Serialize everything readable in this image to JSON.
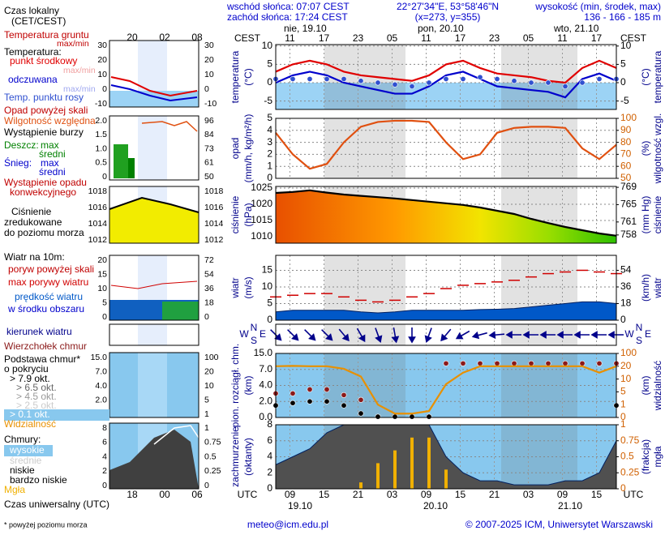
{
  "header": {
    "sunrise": "wschód słońca: 07:07 CEST",
    "sunset": "zachód słońca: 17:24 CEST",
    "coords": "22°27'34\"E, 53°58'46\"N",
    "grid_point": "(x=273, y=355)",
    "elevation_title": "wysokość (min, środek, max)",
    "elevation": "136 - 166 - 185 m"
  },
  "axes": {
    "local_label": "CEST",
    "utc_label": "UTC",
    "days": [
      "nie, 19.10",
      "pon, 20.10",
      "wto, 21.10"
    ],
    "utc_dates": [
      "19.10",
      "20.10",
      "21.10"
    ]
  },
  "legend": {
    "texts": [
      "Czas lokalny",
      "(CET/CEST)",
      "Temperatura gruntu",
      "max/min",
      "Temperatura:",
      "max/min",
      "max/min",
      "Opad powyżej skali",
      "Wystąpienie burzy",
      "Deszcz:",
      "max",
      "średni",
      "Śnieg:",
      "max",
      "średni",
      "Wystąpienie opadu",
      "konwekcyjnego",
      "Ciśnienie",
      "zredukowane",
      "do poziomu morza",
      "Wiatr na 10m:",
      "poryw powyżej skali",
      "w środku obszaru",
      "kierunek wiatru",
      "Podstawa chmur*",
      "o pokryciu",
      "> 6.5 okt.",
      "> 4.5 okt.",
      "> 2.5 okt.",
      "> 0.1 okt.",
      "Chmury:",
      "wysokie",
      "średnie",
      "bardzo niskie",
      "Czas uniwersalny (UTC)"
    ],
    "mini_times_top": [
      "20",
      "02",
      "08"
    ],
    "mini_times_bottom": [
      "18",
      "00",
      "06"
    ],
    "mini_ticks": [
      {
        "left": [
          30,
          20,
          10,
          0,
          -10
        ],
        "right": [
          30,
          20,
          10,
          0,
          -10
        ]
      },
      {
        "left": [
          "2.0",
          "1.5",
          "1.0",
          "0.5",
          0
        ],
        "right": [
          96,
          84,
          73,
          61,
          50
        ]
      },
      {
        "left": [
          1018,
          1016,
          1014,
          1012
        ],
        "right": [
          1018,
          1016,
          1014,
          1012
        ]
      },
      {
        "left": [
          20,
          15,
          10,
          5,
          0
        ],
        "right": [
          72,
          54,
          36,
          18,
          0
        ]
      },
      {
        "left": [
          "15.0",
          "7.0",
          "4.0",
          "2.0",
          "0.0"
        ],
        "right": [
          100,
          20,
          10,
          5,
          1
        ]
      },
      {
        "left": [
          8,
          6,
          4,
          2,
          0
        ],
        "right": [
          1,
          0.75,
          0.5,
          0.25,
          0
        ]
      }
    ]
  },
  "footer": {
    "note": "* powyżej poziomu morza",
    "email": "meteo@icm.edu.pl",
    "copyright": "© 2007-2025 ICM, Uniwersytet Warszawski"
  },
  "chart_data": [
    {
      "type": "line",
      "ylabel": [
        "temperatura",
        "(°C)"
      ],
      "y2label": [
        "(°C)",
        "temperatura"
      ],
      "x": [
        6.5,
        9.5,
        12.5,
        15.5,
        18.5,
        21.5,
        24.5,
        27.5,
        30.5,
        33.5,
        36.5,
        39.5,
        42.5,
        45.5,
        48.5,
        51.5,
        54.5,
        57.5,
        60.5,
        63.5,
        66.5
      ],
      "xlim": [
        6.5,
        66.5
      ],
      "xticks": [
        {
          "value": 9,
          "label": "11"
        },
        {
          "value": 15,
          "label": "17"
        },
        {
          "value": 21,
          "label": "23"
        },
        {
          "value": 27,
          "label": "05"
        },
        {
          "value": 33,
          "label": "11"
        },
        {
          "value": 39,
          "label": "17"
        },
        {
          "value": 45,
          "label": "23"
        },
        {
          "value": 51,
          "label": "05"
        },
        {
          "value": 57,
          "label": "11"
        },
        {
          "value": 63,
          "label": "17"
        }
      ],
      "ylim": [
        -7.3,
        10.4
      ],
      "yticks": [
        -5,
        0,
        5,
        10
      ],
      "y2lim": [
        -7.3,
        10.4
      ],
      "y2ticks": [
        -5,
        0,
        5,
        10
      ],
      "grid": true,
      "series": [
        {
          "name": "punkt środkowy",
          "color": "#e00000",
          "kind": "line",
          "values": [
            3,
            5,
            6,
            5,
            3,
            2,
            1.5,
            1,
            0.5,
            2,
            5,
            6,
            4,
            2.5,
            2,
            1.5,
            0.5,
            0,
            4,
            6,
            4
          ]
        },
        {
          "name": "odczuwana",
          "color": "#0000cc",
          "kind": "line",
          "values": [
            0,
            2,
            3,
            2,
            0,
            -1,
            -2,
            -3,
            -3,
            -1,
            2,
            3,
            1,
            -1,
            -1.5,
            -2,
            -2.5,
            -4,
            1,
            2.5,
            0.5
          ]
        },
        {
          "name": "Temp. punktu rosy",
          "color": "#3050d0",
          "kind": "dots",
          "values": [
            1,
            1,
            1,
            1,
            1,
            0.5,
            0,
            -0.5,
            -1,
            0,
            1,
            1,
            1.5,
            1,
            0.5,
            0,
            0,
            -1,
            0,
            1,
            1
          ]
        }
      ]
    },
    {
      "type": "line",
      "ylabel": [
        "opad",
        "(mm/h, kg/m²/h)"
      ],
      "y2label": [
        "(%)",
        "wilgotność wzgl."
      ],
      "x": [
        6.5,
        9.5,
        12.5,
        15.5,
        18.5,
        21.5,
        24.5,
        27.5,
        30.5,
        33.5,
        36.5,
        39.5,
        42.5,
        45.5,
        48.5,
        51.5,
        54.5,
        57.5,
        60.5,
        63.5,
        66.5
      ],
      "xlim": [
        6.5,
        66.5
      ],
      "ylim": [
        0,
        5
      ],
      "yticks": [
        0,
        1,
        2,
        3,
        4,
        5
      ],
      "y2lim": [
        50,
        100
      ],
      "y2ticks": [
        50,
        60,
        70,
        80,
        90,
        100
      ],
      "grid": true,
      "series": [
        {
          "name": "Wilgotność względna",
          "color": "#e05010",
          "kind": "line",
          "axis": "y2",
          "values": [
            88,
            70,
            58,
            62,
            80,
            93,
            97,
            98,
            98,
            97,
            80,
            66,
            70,
            88,
            92,
            93,
            93,
            92,
            75,
            66,
            78
          ]
        }
      ]
    },
    {
      "type": "area",
      "ylabel": [
        "ciśnienie",
        "(hPa)"
      ],
      "y2label": [
        "(mm Hg)",
        "ciśnienie"
      ],
      "color": "#000000",
      "x": [
        6.5,
        9.5,
        12.5,
        15.5,
        18.5,
        21.5,
        24.5,
        27.5,
        30.5,
        33.5,
        36.5,
        39.5,
        42.5,
        45.5,
        48.5,
        51.5,
        54.5,
        57.5,
        60.5,
        63.5,
        66.5
      ],
      "xlim": [
        6.5,
        66.5
      ],
      "ylim": [
        1008,
        1025.5
      ],
      "yticks": [
        1010,
        1015,
        1020,
        1025
      ],
      "y2lim": [
        756.1,
        769.2
      ],
      "y2ticks": [
        758,
        761,
        765,
        769
      ],
      "grid": true,
      "values": [
        1023.5,
        1023.8,
        1024.3,
        1023.6,
        1023,
        1022.6,
        1022.2,
        1021.8,
        1021.3,
        1020.8,
        1020.3,
        1019.8,
        1019,
        1018,
        1017,
        1015.5,
        1014.2,
        1013,
        1012,
        1011,
        1010.3
      ]
    },
    {
      "type": "line",
      "ylabel": [
        "wiatr",
        "(m/s)"
      ],
      "y2label": [
        "(km/h)",
        "wiatr"
      ],
      "x": [
        6.5,
        9.5,
        12.5,
        15.5,
        18.5,
        21.5,
        24.5,
        27.5,
        30.5,
        33.5,
        36.5,
        39.5,
        42.5,
        45.5,
        48.5,
        51.5,
        54.5,
        57.5,
        60.5,
        63.5,
        66.5
      ],
      "xlim": [
        6.5,
        66.5
      ],
      "ylim": [
        0,
        19.5
      ],
      "yticks": [
        0,
        5,
        10,
        15
      ],
      "y2lim": [
        0,
        70.2
      ],
      "y2ticks": [
        0,
        18,
        36,
        54
      ],
      "grid": true,
      "series": [
        {
          "name": "prędkość wiatru",
          "color": "#0058c8",
          "kind": "area",
          "values": [
            2.5,
            3,
            3,
            3,
            3,
            2.5,
            2.2,
            2.5,
            3,
            3,
            3,
            3,
            3.2,
            3.3,
            3.5,
            4,
            4.5,
            5,
            5.5,
            5.5,
            5
          ]
        },
        {
          "name": "max porywy wiatru",
          "color": "#d00000",
          "kind": "steps",
          "values": [
            7,
            7.5,
            8,
            8,
            7,
            6,
            5.5,
            6,
            7,
            8,
            9.5,
            10.5,
            11,
            11.5,
            12,
            13,
            14,
            14.5,
            15,
            14.5,
            14
          ]
        }
      ]
    },
    {
      "type": "quiver",
      "compass": [
        "N",
        "W",
        "E",
        "S"
      ],
      "color": "#00008b",
      "x": [
        6.5,
        9.5,
        12.5,
        15.5,
        18.5,
        21.5,
        24.5,
        27.5,
        30.5,
        33.5,
        36.5,
        39.5,
        42.5,
        45.5,
        48.5,
        51.5,
        54.5,
        57.5,
        60.5,
        63.5,
        66.5
      ],
      "xlim": [
        6.5,
        66.5
      ],
      "values": [
        315,
        315,
        315,
        315,
        320,
        330,
        340,
        350,
        0,
        20,
        40,
        60,
        75,
        85,
        90,
        90,
        90,
        90,
        90,
        90,
        90
      ]
    },
    {
      "type": "line",
      "ylabel": [
        "pion. rozciągł. chm.",
        "(km)"
      ],
      "y2label": [
        "(km)",
        "widzialność"
      ],
      "yscale": "piecewise",
      "x": [
        6.5,
        9.5,
        12.5,
        15.5,
        18.5,
        21.5,
        24.5,
        27.5,
        30.5,
        33.5,
        36.5,
        39.5,
        42.5,
        45.5,
        48.5,
        51.5,
        54.5,
        57.5,
        60.5,
        63.5,
        66.5
      ],
      "xlim": [
        6.5,
        66.5
      ],
      "ylim": [
        0,
        15
      ],
      "yticks": [
        {
          "value": 0,
          "label": "0.0"
        },
        {
          "value": 2,
          "label": "2.0"
        },
        {
          "value": 4,
          "label": "4.0"
        },
        {
          "value": 7,
          "label": "7.0"
        },
        {
          "value": 15,
          "label": "15.0"
        }
      ],
      "y2lim": [
        0,
        100
      ],
      "y2ticks": [
        0,
        1,
        5,
        10,
        20,
        100
      ],
      "grid": true,
      "series": [
        {
          "name": "Wierzchołek chmur",
          "color": "#8b1a1a",
          "kind": "dots",
          "values": [
            3,
            3,
            3.5,
            3.5,
            2.8,
            2.2,
            null,
            null,
            null,
            null,
            10,
            10,
            10,
            10,
            10,
            10,
            10,
            10,
            10,
            10,
            10
          ]
        },
        {
          "name": "> 7.9 okt.",
          "color": "#000000",
          "kind": "dots",
          "values": [
            1.5,
            1.8,
            2,
            2,
            1.5,
            0.5,
            0.1,
            0.1,
            0.1,
            0.1,
            null,
            null,
            null,
            null,
            null,
            null,
            null,
            null,
            null,
            null,
            1.5
          ]
        },
        {
          "name": "Widzialność",
          "color": "#e89000",
          "kind": "line",
          "axis": "y2",
          "values": [
            20,
            22,
            20,
            20,
            18,
            12,
            1,
            0.3,
            0.3,
            0.5,
            8,
            15,
            20,
            20,
            20,
            20,
            20,
            20,
            20,
            15,
            20
          ]
        }
      ]
    },
    {
      "type": "line",
      "ylabel": [
        "zachmurzenie",
        "(oktanty)"
      ],
      "y2label": [
        "(frakcja)",
        "mgła"
      ],
      "x": [
        6.5,
        9.5,
        12.5,
        15.5,
        18.5,
        21.5,
        24.5,
        27.5,
        30.5,
        33.5,
        36.5,
        39.5,
        42.5,
        45.5,
        48.5,
        51.5,
        54.5,
        57.5,
        60.5,
        63.5,
        66.5
      ],
      "xlim": [
        6.5,
        66.5
      ],
      "xticks": [
        {
          "value": 9,
          "label": "09"
        },
        {
          "value": 15,
          "label": "15"
        },
        {
          "value": 21,
          "label": "21"
        },
        {
          "value": 27,
          "label": "03"
        },
        {
          "value": 33,
          "label": "09"
        },
        {
          "value": 39,
          "label": "15"
        },
        {
          "value": 45,
          "label": "21"
        },
        {
          "value": 51,
          "label": "03"
        },
        {
          "value": 57,
          "label": "09"
        },
        {
          "value": 63,
          "label": "15"
        }
      ],
      "ylim": [
        0,
        8
      ],
      "yticks": [
        0,
        2,
        4,
        6,
        8
      ],
      "y2lim": [
        0,
        1
      ],
      "y2ticks": [
        0,
        0.25,
        0.5,
        0.75,
        1
      ],
      "grid": true,
      "series": [
        {
          "name": "niskie",
          "color": "#505050",
          "kind": "area",
          "values": [
            3,
            4,
            5,
            7,
            8,
            8,
            8,
            8,
            8,
            8,
            4,
            2,
            1,
            1,
            0.5,
            0.5,
            0.5,
            1,
            1,
            2,
            6
          ]
        },
        {
          "name": "Mgła",
          "color": "#f0b000",
          "kind": "bars",
          "axis": "y2",
          "values": [
            0,
            0,
            0,
            0,
            0,
            0.1,
            0.4,
            0.6,
            0.8,
            0.8,
            0.3,
            0,
            0,
            0,
            0,
            0,
            0,
            0,
            0,
            0,
            0
          ]
        }
      ]
    }
  ]
}
